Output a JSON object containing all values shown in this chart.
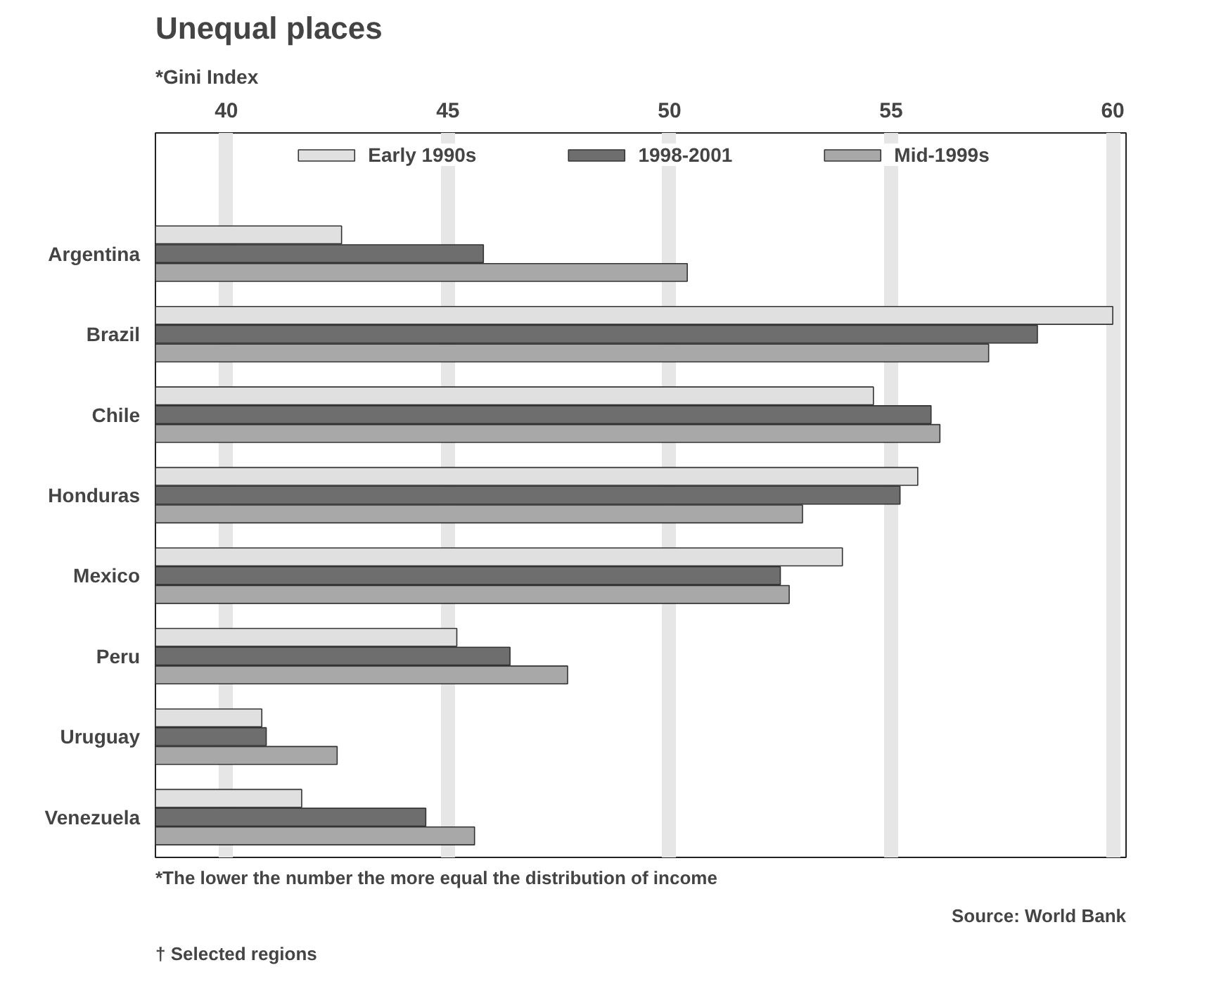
{
  "chart_data": {
    "type": "bar",
    "orientation": "horizontal",
    "title": "Unequal places",
    "subtitle": "*Gini Index",
    "categories": [
      "Argentina",
      "Brazil",
      "Chile",
      "Honduras",
      "Mexico",
      "Peru",
      "Uruguay",
      "Venezuela"
    ],
    "series": [
      {
        "name": "Early 1990s",
        "color": "#e0e0e0",
        "values": [
          42.6,
          60.0,
          54.6,
          55.6,
          53.9,
          45.2,
          40.8,
          41.7
        ]
      },
      {
        "name": "1998-2001",
        "color": "#6e6e6e",
        "values": [
          45.8,
          58.3,
          55.9,
          55.2,
          52.5,
          46.4,
          40.9,
          44.5
        ]
      },
      {
        "name": "Mid-1999s",
        "color": "#a8a8a8",
        "values": [
          50.4,
          57.2,
          56.1,
          53.0,
          52.7,
          47.7,
          42.5,
          45.6
        ]
      }
    ],
    "xlim": [
      38.4,
      60.3
    ],
    "xticks": [
      40,
      45,
      50,
      55,
      60
    ],
    "grid": "x",
    "legend": "top",
    "annotations": [
      "*The lower the number the more equal the distribution of income",
      "Source: World Bank",
      "† Selected regions"
    ]
  }
}
